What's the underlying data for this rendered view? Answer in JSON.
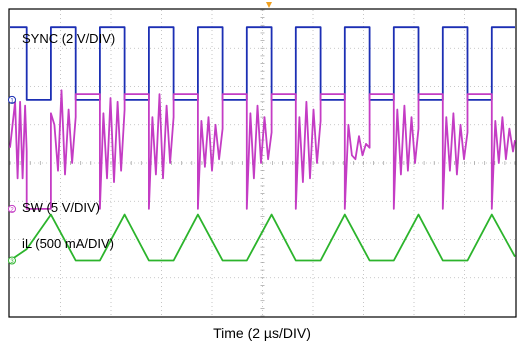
{
  "chart_data": {
    "type": "line",
    "title": "",
    "xlabel": "Time (2 µs/DIV)",
    "ylabel": "",
    "x_divisions": 10,
    "y_divisions": 8,
    "grid": true,
    "time_per_div_us": 2,
    "series": [
      {
        "name": "SYNC (2 V/DIV)",
        "color": "#1c2fb4",
        "waveform": "square",
        "period_div": 0.97,
        "x_div": [
          0.0,
          0.33,
          0.33,
          0.81,
          0.81,
          1.3,
          1.3,
          1.78,
          1.78,
          2.27,
          2.27,
          2.75,
          2.75,
          3.24,
          3.24,
          3.72,
          3.72,
          4.21,
          4.21,
          4.69,
          4.69,
          5.18,
          5.18,
          5.66,
          5.66,
          6.15,
          6.15,
          6.63,
          6.63,
          7.12,
          7.12,
          7.6,
          7.6,
          8.09,
          8.09,
          8.57,
          8.57,
          9.06,
          9.06,
          9.54,
          9.54,
          10.0
        ],
        "y_div": [
          3.55,
          3.55,
          1.65,
          1.65,
          3.55,
          3.55,
          1.65,
          1.65,
          3.55,
          3.55,
          1.65,
          1.65,
          3.55,
          3.55,
          1.65,
          1.65,
          3.55,
          3.55,
          1.65,
          1.65,
          3.55,
          3.55,
          1.65,
          1.65,
          3.55,
          3.55,
          1.65,
          1.65,
          3.55,
          3.55,
          1.65,
          1.65,
          3.55,
          3.55,
          1.65,
          1.65,
          3.55,
          3.55,
          1.65,
          1.65,
          3.55,
          3.55
        ]
      },
      {
        "name": "SW (5 V/DIV)",
        "color": "#c43cc4",
        "waveform": "switch-node with ringing",
        "x_div": [
          0.0,
          0.1,
          0.15,
          0.2,
          0.25,
          0.3,
          0.33,
          0.33,
          0.81,
          0.81,
          0.88,
          0.95,
          1.02,
          1.09,
          1.16,
          1.23,
          1.3,
          1.3,
          1.78,
          1.78,
          1.85,
          1.92,
          1.99,
          2.06,
          2.13,
          2.2,
          2.27,
          2.27,
          2.75,
          2.75,
          2.82,
          2.89,
          2.96,
          3.03,
          3.1,
          3.17,
          3.24,
          3.24,
          3.72,
          3.72,
          3.79,
          3.86,
          3.93,
          4.0,
          4.07,
          4.14,
          4.21,
          4.21,
          4.69,
          4.69,
          4.76,
          4.83,
          4.9,
          4.97,
          5.04,
          5.11,
          5.18,
          5.18,
          5.66,
          5.66,
          5.73,
          5.8,
          5.87,
          5.94,
          6.01,
          6.08,
          6.15,
          6.15,
          6.63,
          6.63,
          6.7,
          6.77,
          6.84,
          6.91,
          6.98,
          7.05,
          7.12,
          7.12,
          7.6,
          7.6,
          7.67,
          7.74,
          7.81,
          7.88,
          7.95,
          8.02,
          8.09,
          8.09,
          8.57,
          8.57,
          8.64,
          8.71,
          8.78,
          8.85,
          8.92,
          8.99,
          9.06,
          9.06,
          9.54,
          9.54,
          9.61,
          9.68,
          9.75,
          9.82,
          9.89,
          9.96,
          10.0
        ],
        "y_div": [
          0.4,
          1.6,
          -0.4,
          1.6,
          -0.4,
          1.5,
          0.3,
          -1.2,
          -1.2,
          1.3,
          1.0,
          -0.2,
          1.9,
          -0.3,
          1.4,
          0.0,
          1.2,
          1.8,
          1.8,
          -1.2,
          1.3,
          -0.4,
          1.7,
          -0.5,
          1.6,
          -0.2,
          1.4,
          1.8,
          1.8,
          -1.2,
          1.2,
          -0.3,
          1.8,
          -0.4,
          1.5,
          0.0,
          1.2,
          1.8,
          1.8,
          -1.2,
          1.1,
          -0.1,
          1.2,
          -0.2,
          1.0,
          0.1,
          0.9,
          1.8,
          1.8,
          -1.2,
          1.3,
          -0.4,
          1.5,
          0.0,
          1.2,
          0.1,
          0.8,
          1.8,
          1.8,
          -1.2,
          1.2,
          -0.5,
          1.6,
          -0.4,
          1.4,
          0.0,
          1.1,
          1.8,
          1.8,
          -1.2,
          1.0,
          0.2,
          0.1,
          0.7,
          0.2,
          0.5,
          0.4,
          1.8,
          1.8,
          -1.2,
          1.4,
          -0.3,
          1.5,
          -0.2,
          1.2,
          0.0,
          0.9,
          1.8,
          1.8,
          -1.2,
          1.2,
          -0.2,
          1.3,
          -0.3,
          1.0,
          0.1,
          0.8,
          1.8,
          1.8,
          -1.2,
          1.1,
          0.0,
          1.2,
          0.1,
          0.9,
          0.3,
          0.6
        ]
      },
      {
        "name": "iL (500 mA/DIV)",
        "color": "#2cb42c",
        "waveform": "triangle",
        "x_div": [
          0.0,
          0.33,
          0.81,
          1.3,
          1.78,
          2.27,
          2.75,
          3.24,
          3.72,
          4.21,
          4.69,
          5.18,
          5.66,
          6.15,
          6.63,
          7.12,
          7.6,
          8.09,
          8.57,
          9.06,
          9.54,
          10.0
        ],
        "y_div": [
          -2.55,
          -2.25,
          -1.35,
          -2.55,
          -2.55,
          -1.35,
          -2.55,
          -2.55,
          -1.35,
          -2.55,
          -2.55,
          -1.35,
          -2.55,
          -2.55,
          -1.35,
          -2.55,
          -2.55,
          -1.35,
          -2.55,
          -2.55,
          -1.35,
          -2.45
        ]
      }
    ],
    "annotations": [
      "SYNC (2 V/DIV)",
      "SW (5 V/DIV)",
      "iL (500 mA/DIV)"
    ],
    "channel_markers": [
      "1",
      "2",
      "3"
    ]
  }
}
